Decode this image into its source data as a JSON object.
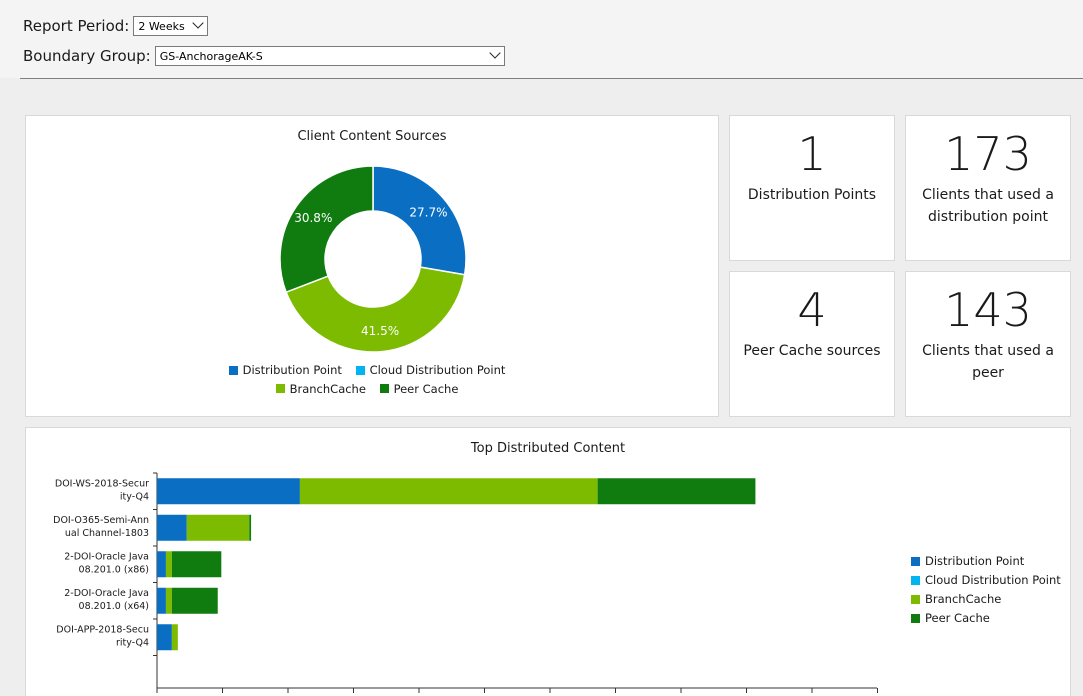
{
  "filters": {
    "report_period_label": "Report Period:",
    "report_period_value": "2 Weeks",
    "boundary_group_label": "Boundary Group:",
    "boundary_group_value": "GS-AnchorageAK-S"
  },
  "colors": {
    "distribution_point": "#0a6fc3",
    "cloud_distribution_point": "#00b4ef",
    "branchcache": "#7cbb00",
    "peer_cache": "#107c10"
  },
  "legend": {
    "distribution_point": "Distribution Point",
    "cloud_distribution_point": "Cloud Distribution Point",
    "branchcache": "BranchCache",
    "peer_cache": "Peer Cache"
  },
  "tiles": [
    {
      "value": "1",
      "caption": "Distribution Points"
    },
    {
      "value": "173",
      "caption": "Clients that used a distribution point"
    },
    {
      "value": "4",
      "caption": "Peer Cache sources"
    },
    {
      "value": "143",
      "caption": "Clients that used a peer"
    }
  ],
  "chart_data": [
    {
      "type": "pie",
      "title": "Client Content Sources",
      "categories": [
        "Distribution Point",
        "Cloud Distribution Point",
        "BranchCache",
        "Peer Cache"
      ],
      "values": [
        27.7,
        0,
        41.5,
        30.8
      ],
      "labels": [
        "27.7%",
        "",
        "41.5%",
        "30.8%"
      ],
      "donut": true,
      "legend_position": "bottom"
    },
    {
      "type": "bar",
      "orientation": "horizontal",
      "stacked": true,
      "title": "Top Distributed Content",
      "categories": [
        "DOI-WS-2018-Security-Q4",
        "DOI-O365-Semi-Annual Channel-1803",
        "2-DOI-Oracle Java 08.201.0 (x86)",
        "2-DOI-Oracle Java 08.201.0 (x64)",
        "DOI-APP-2018-Security-Q4"
      ],
      "category_lines": [
        [
          "DOI-WS-2018-Secur",
          "ity-Q4"
        ],
        [
          "DOI-O365-Semi-Ann",
          "ual Channel-1803"
        ],
        [
          "2-DOI-Oracle Java",
          "08.201.0 (x86)"
        ],
        [
          "2-DOI-Oracle Java",
          "08.201.0 (x64)"
        ],
        [
          "DOI-APP-2018-Secu",
          "rity-Q4"
        ]
      ],
      "series": [
        {
          "name": "Distribution Point",
          "values": [
            24,
            5,
            1.5,
            1.5,
            2.5
          ]
        },
        {
          "name": "Cloud Distribution Point",
          "values": [
            0,
            0,
            0,
            0,
            0
          ]
        },
        {
          "name": "BranchCache",
          "values": [
            50,
            10.5,
            1,
            1,
            1
          ]
        },
        {
          "name": "Peer Cache",
          "values": [
            26.5,
            0.3,
            8.3,
            7.7,
            0
          ]
        }
      ],
      "xlim": [
        0,
        110
      ],
      "legend_position": "right"
    }
  ]
}
